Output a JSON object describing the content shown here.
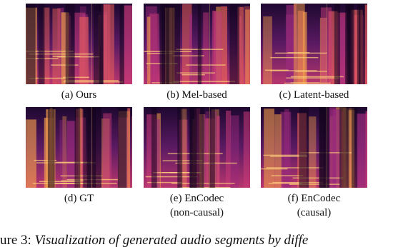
{
  "panels": [
    {
      "label": "(a) Ours"
    },
    {
      "label": "(b) Mel-based"
    },
    {
      "label": "(c) Latent-based"
    },
    {
      "label": "(d) GT"
    },
    {
      "label": "(e) EnCodec",
      "label2": "(non-causal)"
    },
    {
      "label": "(f) EnCodec",
      "label2": "(causal)"
    }
  ],
  "caption": {
    "prefix": "ure 3:",
    "text": "Visualization of generated audio segments by diffe"
  }
}
